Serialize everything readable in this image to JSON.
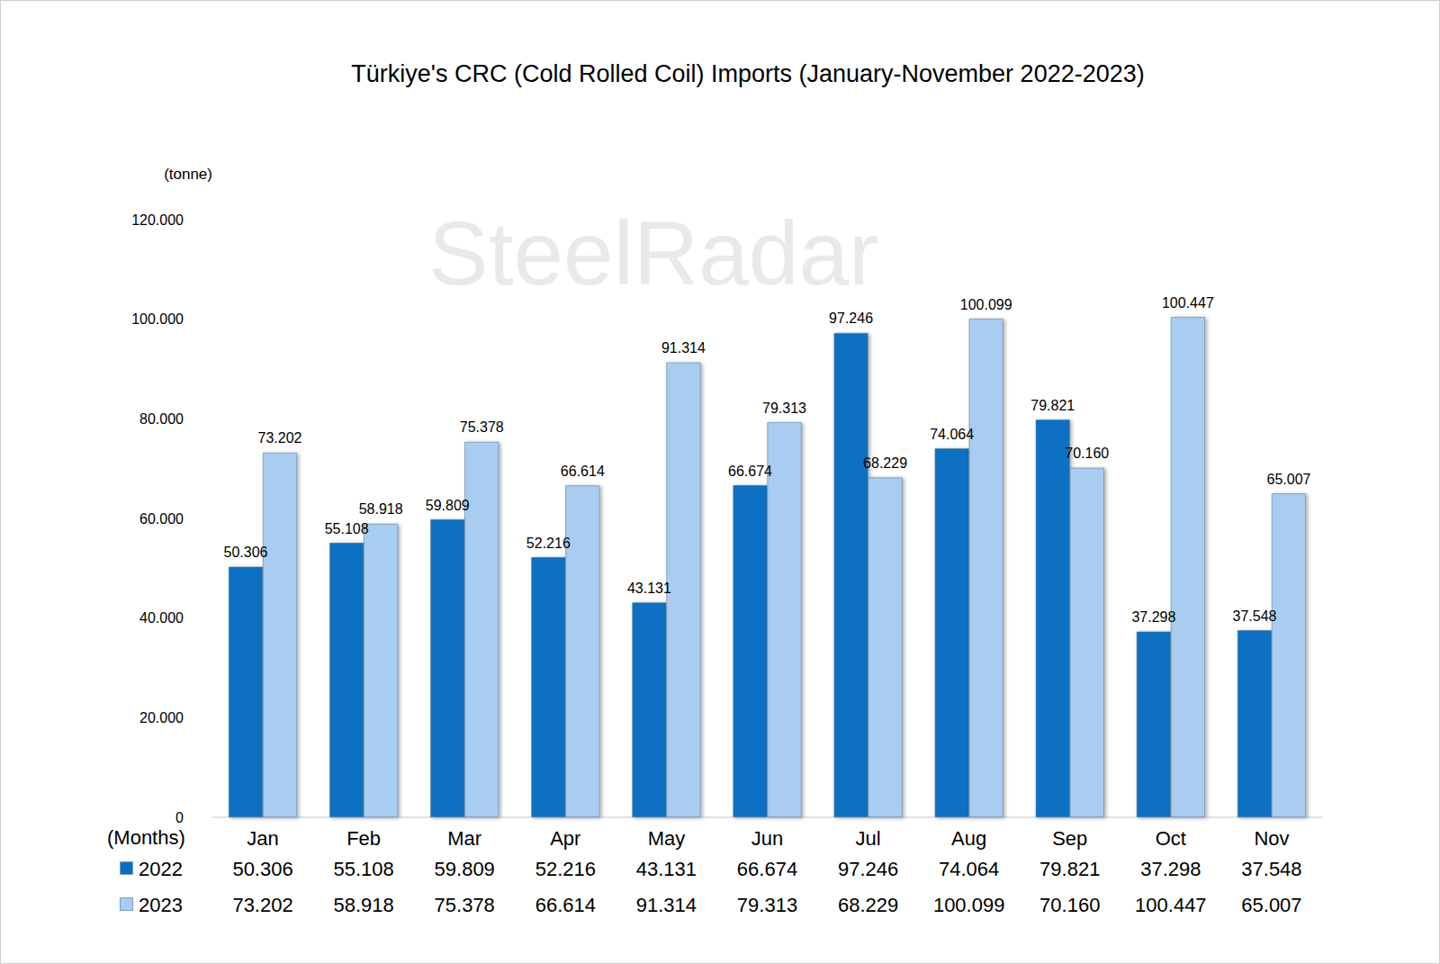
{
  "chart_data": {
    "type": "bar",
    "title": "Türkiye's CRC (Cold Rolled Coil) Imports (January-November 2022-2023)",
    "y_label": "(tonne)",
    "x_label": "(Months)",
    "watermark": "SteelRadar",
    "categories": [
      "Jan",
      "Feb",
      "Mar",
      "Apr",
      "May",
      "Jun",
      "Jul",
      "Aug",
      "Sep",
      "Oct",
      "Nov"
    ],
    "series": [
      {
        "name": "2022",
        "color": "#0a6fc2",
        "values": [
          50306,
          55108,
          59809,
          52216,
          43131,
          66674,
          97246,
          74064,
          79821,
          37298,
          37548
        ],
        "value_labels": [
          "50.306",
          "55.108",
          "59.809",
          "52.216",
          "43.131",
          "66.674",
          "97.246",
          "74.064",
          "79.821",
          "37.298",
          "37.548"
        ]
      },
      {
        "name": "2023",
        "color": "#a9cdf0",
        "values": [
          73202,
          58918,
          75378,
          66614,
          91314,
          79313,
          68229,
          100099,
          70160,
          100447,
          65007
        ],
        "value_labels": [
          "73.202",
          "58.918",
          "75.378",
          "66.614",
          "91.314",
          "79.313",
          "68.229",
          "100.099",
          "70.160",
          "100.447",
          "65.007"
        ]
      }
    ],
    "ylim": [
      0,
      120000
    ],
    "yticks": [
      0,
      {
        "value": 20000,
        "label": "20.000"
      },
      {
        "value": 40000,
        "label": "40.000"
      },
      {
        "value": 60000,
        "label": "60.000"
      },
      {
        "value": 80000,
        "label": "80.000"
      },
      {
        "value": 100000,
        "label": "100.000"
      },
      {
        "value": 120000,
        "label": "120.000"
      }
    ],
    "grid": false,
    "data_labels": true
  }
}
